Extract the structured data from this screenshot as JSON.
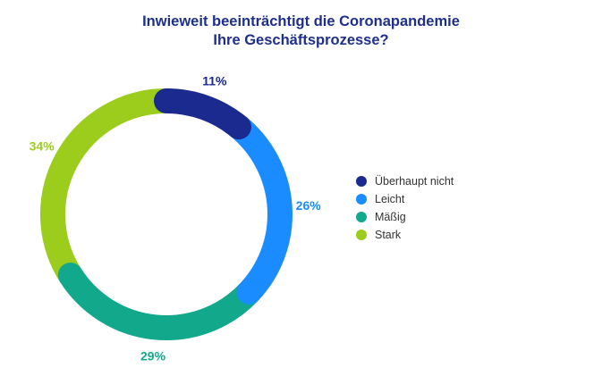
{
  "chart_data": {
    "type": "pie",
    "title_lines": [
      "Inwieweit beeinträchtigt die Coronapandemie",
      "Ihre Geschäftsprozesse?"
    ],
    "categories": [
      "Überhaupt nicht",
      "Leicht",
      "Mäßig",
      "Stark"
    ],
    "values": [
      11,
      26,
      29,
      34
    ],
    "labels": [
      "11%",
      "26%",
      "29%",
      "34%"
    ],
    "colors": [
      "#1a2a8f",
      "#1a8cff",
      "#11a88c",
      "#9ccc1c"
    ],
    "legend_position": "right",
    "donut": true
  }
}
